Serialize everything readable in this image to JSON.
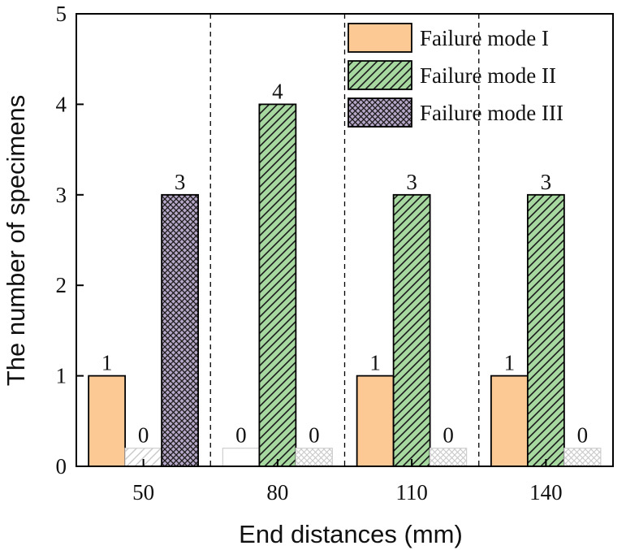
{
  "chart_data": {
    "type": "bar",
    "title": "",
    "xlabel": "End distances (mm)",
    "ylabel": "The number of specimens",
    "ylim": [
      0,
      5
    ],
    "yticks": [
      "0",
      "1",
      "2",
      "3",
      "4",
      "5"
    ],
    "categories": [
      "50",
      "80",
      "110",
      "140"
    ],
    "series": [
      {
        "name": "Failure mode I",
        "values": [
          1,
          0,
          1,
          1
        ],
        "color": "#FCC995",
        "pattern": "solid"
      },
      {
        "name": "Failure mode II",
        "values": [
          0,
          4,
          3,
          3
        ],
        "color": "#A7D8A0",
        "pattern": "diagonal-hatch"
      },
      {
        "name": "Failure mode III",
        "values": [
          3,
          0,
          0,
          0
        ],
        "color": "#B7A7C8",
        "pattern": "cross-hatch"
      }
    ],
    "data_labels": [
      [
        "1",
        "0",
        "3"
      ],
      [
        "0",
        "4",
        "0"
      ],
      [
        "1",
        "3",
        "0"
      ],
      [
        "1",
        "3",
        "0"
      ]
    ],
    "zero_placeholder_value": 0.2,
    "group_separators": "dashed vertical lines",
    "legend_position": "top-right",
    "grid": false
  }
}
